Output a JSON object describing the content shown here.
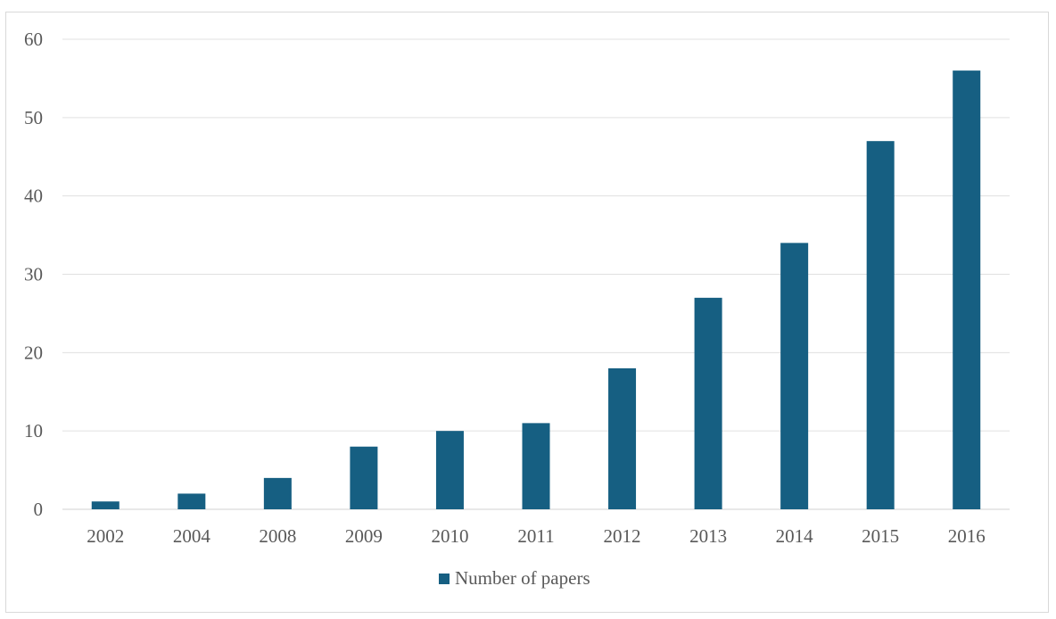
{
  "chart_data": {
    "type": "bar",
    "categories": [
      "2002",
      "2004",
      "2008",
      "2009",
      "2010",
      "2011",
      "2012",
      "2013",
      "2014",
      "2015",
      "2016"
    ],
    "series": [
      {
        "name": "Number of papers",
        "values": [
          1,
          2,
          4,
          8,
          10,
          11,
          18,
          27,
          34,
          47,
          56
        ]
      }
    ],
    "ylim": [
      0,
      60
    ],
    "yticks": [
      0,
      10,
      20,
      30,
      40,
      50,
      60
    ],
    "grid": true,
    "legend_position": "bottom",
    "bar_color": "#165f82",
    "title": "",
    "xlabel": "",
    "ylabel": ""
  }
}
